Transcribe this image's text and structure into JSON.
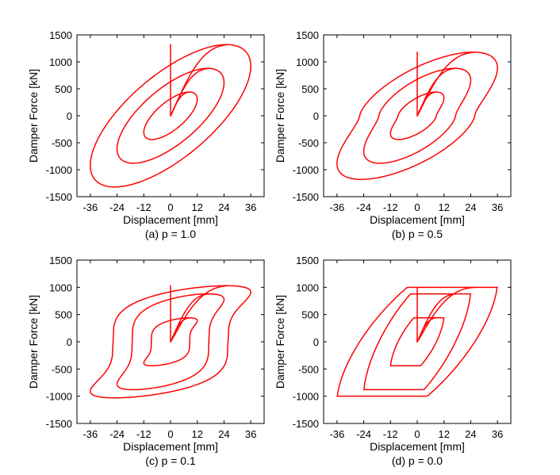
{
  "figure": {
    "curve_color": "#ff0000",
    "line_style": "solid"
  },
  "chart_data": [
    {
      "type": "line",
      "caption": "(a)  p = 1.0",
      "xlabel": "Displacement [mm]",
      "ylabel": "Damper Force [kN]",
      "xlim": [
        -42,
        42
      ],
      "ylim": [
        -1500,
        1500
      ],
      "xticks": [
        -36,
        -24,
        -12,
        0,
        12,
        24,
        36
      ],
      "yticks": [
        -1500,
        -1000,
        -500,
        0,
        500,
        1000,
        1500
      ],
      "grid": false,
      "legend": "none",
      "loops": [
        {
          "amplitude": 12,
          "force": 440
        },
        {
          "amplitude": 24,
          "force": 880
        },
        {
          "amplitude": 36,
          "force": 1320
        }
      ],
      "series": [
        {
          "values": [
            {
              "x": 0,
              "y": 0
            },
            {
              "x": 12,
              "y": 0
            },
            {
              "x": 0,
              "y": -440
            },
            {
              "x": -12,
              "y": 0
            },
            {
              "x": 0,
              "y": 440
            }
          ]
        },
        {
          "values": [
            {
              "x": 24,
              "y": 0
            },
            {
              "x": 0,
              "y": -880
            },
            {
              "x": -24,
              "y": 0
            },
            {
              "x": 0,
              "y": 880
            }
          ]
        },
        {
          "values": [
            {
              "x": 36,
              "y": 0
            },
            {
              "x": 0,
              "y": -1320
            },
            {
              "x": -36,
              "y": 0
            },
            {
              "x": 0,
              "y": 1320
            }
          ]
        }
      ]
    },
    {
      "type": "line",
      "caption": "(b)  p = 0.5",
      "xlabel": "Displacement [mm]",
      "ylabel": "Damper Force [kN]",
      "xlim": [
        -42,
        42
      ],
      "ylim": [
        -1500,
        1500
      ],
      "xticks": [
        -36,
        -24,
        -12,
        0,
        12,
        24,
        36
      ],
      "yticks": [
        -1500,
        -1000,
        -500,
        0,
        500,
        1000,
        1500
      ],
      "grid": false,
      "legend": "none",
      "loops": [
        {
          "amplitude": 12,
          "force": 440
        },
        {
          "amplitude": 24,
          "force": 880
        },
        {
          "amplitude": 36,
          "force": 1180
        }
      ],
      "series": [
        {
          "values": [
            {
              "x": 0,
              "y": 0
            },
            {
              "x": 12,
              "y": 0
            },
            {
              "x": 0,
              "y": -440
            },
            {
              "x": -12,
              "y": 0
            },
            {
              "x": 0,
              "y": 440
            }
          ]
        },
        {
          "values": [
            {
              "x": 24,
              "y": 0
            },
            {
              "x": 0,
              "y": -880
            },
            {
              "x": -24,
              "y": 0
            },
            {
              "x": 0,
              "y": 880
            }
          ]
        },
        {
          "values": [
            {
              "x": 36,
              "y": 0
            },
            {
              "x": 0,
              "y": -1180
            },
            {
              "x": -36,
              "y": 0
            },
            {
              "x": 0,
              "y": 1180
            }
          ]
        }
      ]
    },
    {
      "type": "line",
      "caption": "(c)  p = 0.1",
      "xlabel": "Displacement [mm]",
      "ylabel": "Damper Force [kN]",
      "xlim": [
        -42,
        42
      ],
      "ylim": [
        -1500,
        1500
      ],
      "xticks": [
        -36,
        -24,
        -12,
        0,
        12,
        24,
        36
      ],
      "yticks": [
        -1500,
        -1000,
        -500,
        0,
        500,
        1000,
        1500
      ],
      "grid": false,
      "legend": "none",
      "loops": [
        {
          "amplitude": 12,
          "force": 440
        },
        {
          "amplitude": 24,
          "force": 880
        },
        {
          "amplitude": 36,
          "force": 1030
        }
      ],
      "series": [
        {
          "values": [
            {
              "x": 0,
              "y": 0
            },
            {
              "x": 12,
              "y": 0
            },
            {
              "x": 0,
              "y": -440
            },
            {
              "x": -12,
              "y": 0
            },
            {
              "x": 0,
              "y": 440
            }
          ]
        },
        {
          "values": [
            {
              "x": 24,
              "y": 0
            },
            {
              "x": 0,
              "y": -880
            },
            {
              "x": -24,
              "y": 0
            },
            {
              "x": 0,
              "y": 880
            }
          ]
        },
        {
          "values": [
            {
              "x": 36,
              "y": 0
            },
            {
              "x": 0,
              "y": -1030
            },
            {
              "x": -36,
              "y": 0
            },
            {
              "x": 0,
              "y": 1030
            }
          ]
        }
      ]
    },
    {
      "type": "line",
      "caption": "(d)  p = 0.0",
      "xlabel": "Displacement [mm]",
      "ylabel": "Damper Force [kN]",
      "xlim": [
        -42,
        42
      ],
      "ylim": [
        -1500,
        1500
      ],
      "xticks": [
        -36,
        -24,
        -12,
        0,
        12,
        24,
        36
      ],
      "yticks": [
        -1500,
        -1000,
        -500,
        0,
        500,
        1000,
        1500
      ],
      "grid": false,
      "legend": "none",
      "loops": [
        {
          "amplitude": 12,
          "force": 440
        },
        {
          "amplitude": 24,
          "force": 880
        },
        {
          "amplitude": 36,
          "force": 1000
        }
      ],
      "series": [
        {
          "values": [
            {
              "x": 0,
              "y": 0
            },
            {
              "x": 12,
              "y": 0
            },
            {
              "x": 0,
              "y": -440
            },
            {
              "x": -12,
              "y": 0
            },
            {
              "x": 0,
              "y": 440
            }
          ]
        },
        {
          "values": [
            {
              "x": 24,
              "y": 0
            },
            {
              "x": 0,
              "y": -880
            },
            {
              "x": -24,
              "y": 0
            },
            {
              "x": 0,
              "y": 880
            }
          ]
        },
        {
          "values": [
            {
              "x": 36,
              "y": 0
            },
            {
              "x": 0,
              "y": -1000
            },
            {
              "x": -36,
              "y": 0
            },
            {
              "x": 0,
              "y": 1000
            }
          ]
        }
      ]
    }
  ]
}
